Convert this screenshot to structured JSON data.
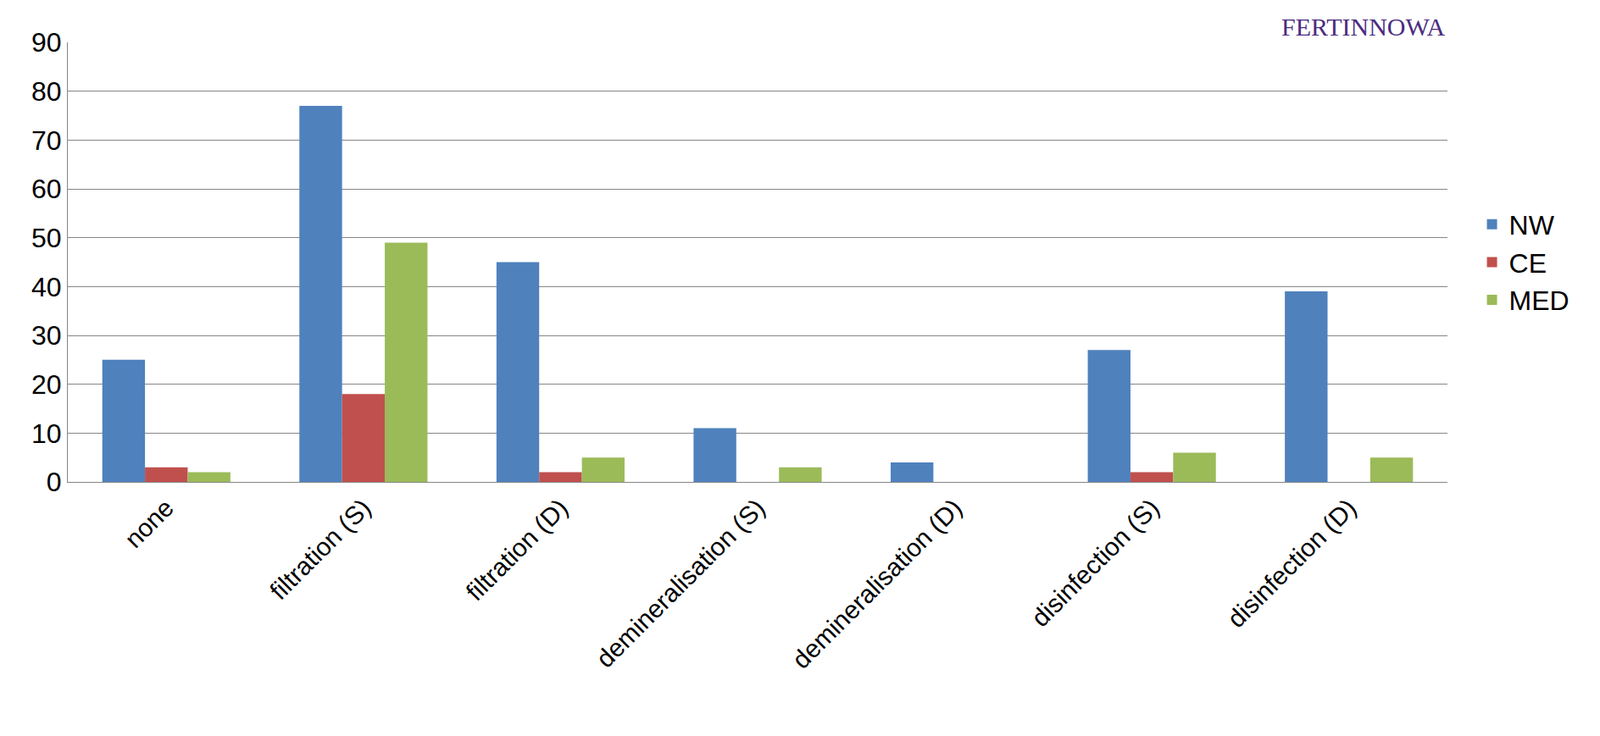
{
  "chart_data": {
    "type": "bar",
    "categories": [
      "none",
      "filtration (S)",
      "filtration (D)",
      "demineralisation (S)",
      "demineralisation (D)",
      "disinfection (S)",
      "disinfection (D)"
    ],
    "series": [
      {
        "name": "NW",
        "color": "#4F81BD",
        "values": [
          25,
          77,
          45,
          11,
          4,
          27,
          39
        ]
      },
      {
        "name": "CE",
        "color": "#C0504D",
        "values": [
          3,
          18,
          2,
          0,
          0,
          2,
          0
        ]
      },
      {
        "name": "MED",
        "color": "#9BBB59",
        "values": [
          2,
          49,
          5,
          3,
          0,
          6,
          5
        ]
      }
    ],
    "annotations": [
      "FERTINNOWA"
    ],
    "ylim": [
      0,
      90
    ],
    "yticks": [
      0,
      10,
      20,
      30,
      40,
      50,
      60,
      70,
      80,
      90
    ],
    "grid": true,
    "legend": "right"
  }
}
